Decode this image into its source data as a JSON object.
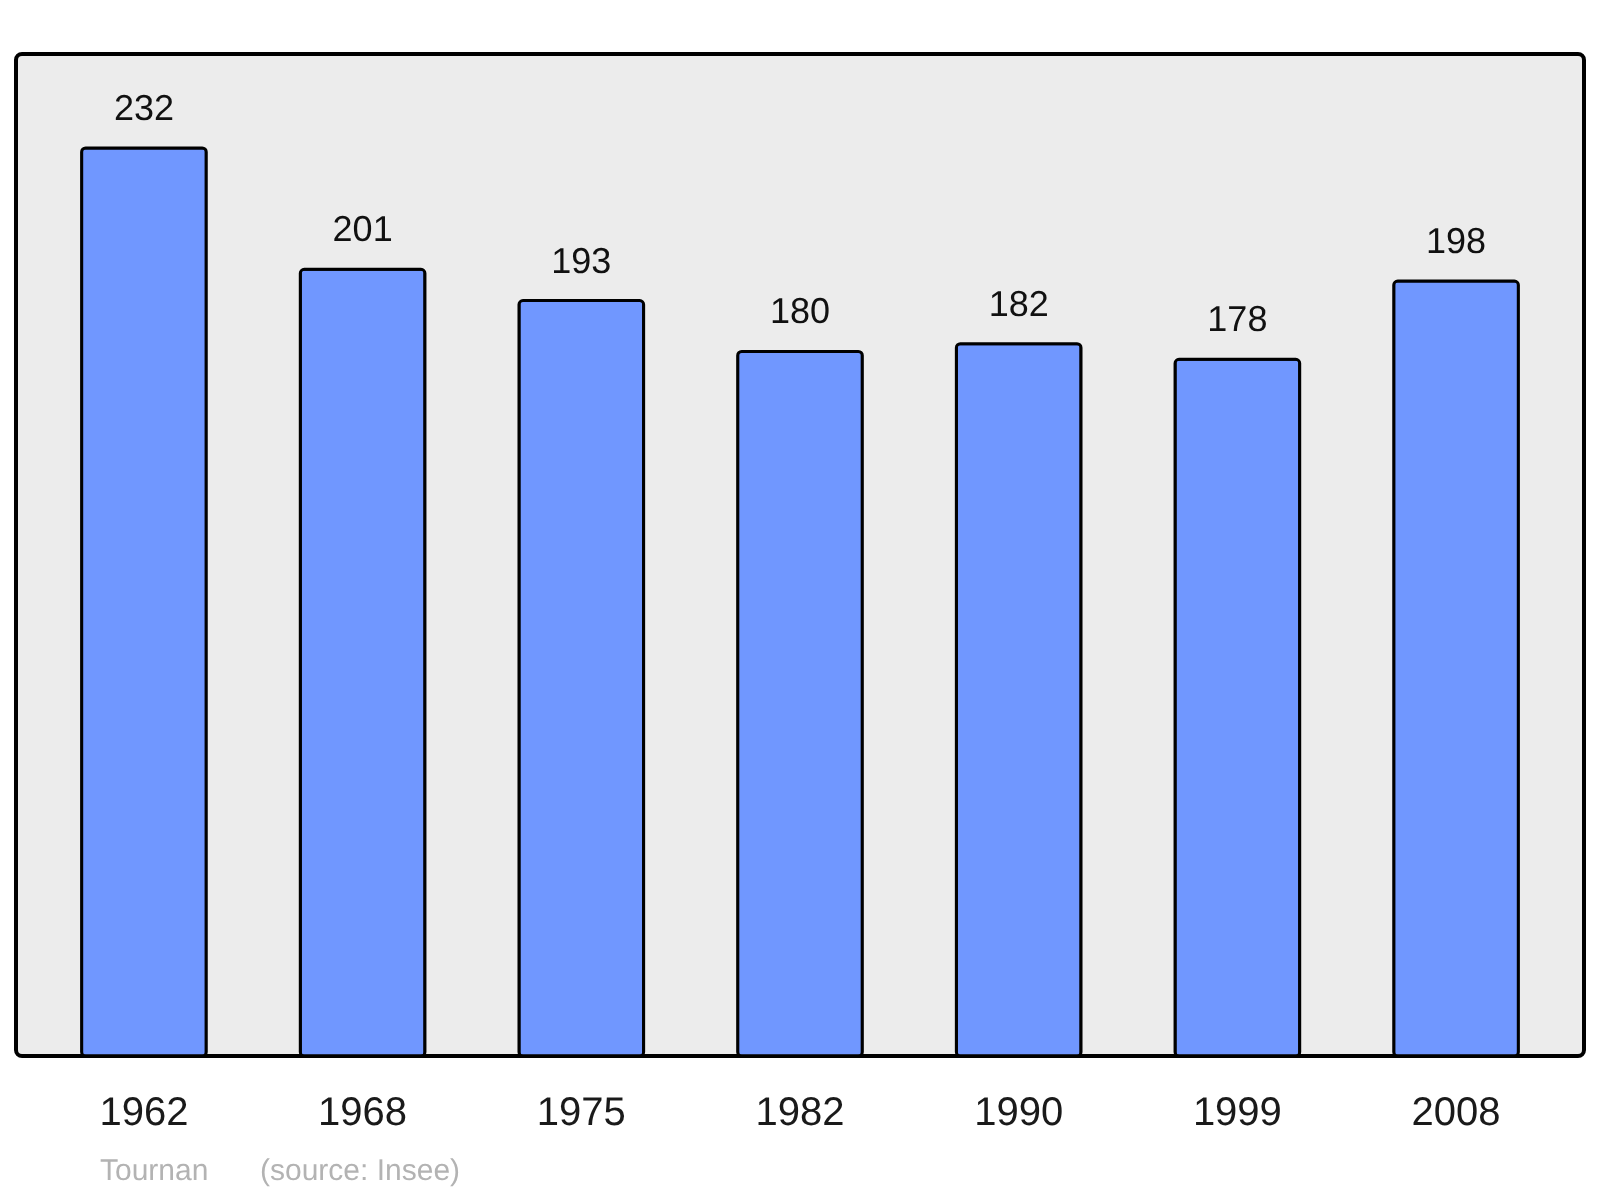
{
  "chart_data": {
    "type": "bar",
    "categories": [
      "1962",
      "1968",
      "1975",
      "1982",
      "1990",
      "1999",
      "2008"
    ],
    "values": [
      232,
      201,
      193,
      180,
      182,
      178,
      198
    ],
    "color": "#7097ff",
    "ylim": [
      0,
      256
    ],
    "data_labels": true,
    "tick_labels": "x",
    "annotations": [
      "Tournan",
      "(source: Insee)"
    ]
  }
}
